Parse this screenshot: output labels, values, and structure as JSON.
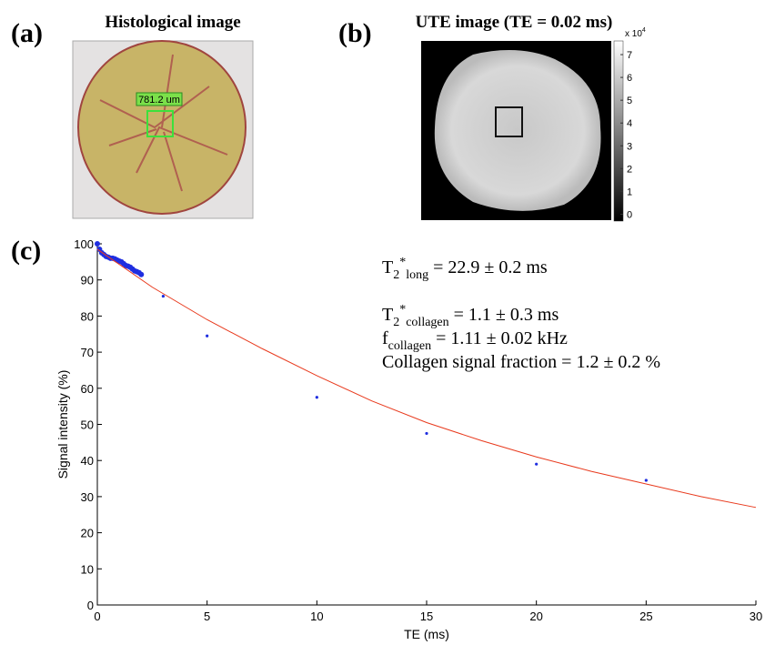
{
  "panels": {
    "a": {
      "label": "(a)",
      "title": "Histological image",
      "scale_label": "781.2 um"
    },
    "b": {
      "label": "(b)",
      "title": "UTE image (TE = 0.02 ms)",
      "colorbar": {
        "multiplier": "x 10",
        "exponent": "4",
        "lim": [
          -0.3,
          7.6
        ],
        "ticks": [
          0,
          1,
          2,
          3,
          4,
          5,
          6,
          7
        ]
      }
    },
    "c": {
      "label": "(c)"
    }
  },
  "chart_data": {
    "type": "scatter",
    "xlabel": "TE (ms)",
    "ylabel": "Signal intensity (%)",
    "xlim": [
      0,
      30
    ],
    "ylim": [
      0,
      100
    ],
    "xticks": [
      0,
      5,
      10,
      15,
      20,
      25,
      30
    ],
    "yticks": [
      0,
      10,
      20,
      30,
      40,
      50,
      60,
      70,
      80,
      90,
      100
    ],
    "series": [
      {
        "type": "scatter",
        "color": "#1f2ee0",
        "x": [
          0,
          0.1,
          0.2,
          0.3,
          0.4,
          0.5,
          0.6,
          0.7,
          0.8,
          0.9,
          1,
          1.1,
          1.2,
          1.3,
          1.4,
          1.5,
          1.6,
          1.7,
          1.8,
          1.9,
          2,
          3,
          5,
          10,
          15,
          20,
          25
        ],
        "values": [
          100,
          98.5,
          97.5,
          97,
          96.5,
          96.3,
          96,
          96,
          95.8,
          95.5,
          95.2,
          95,
          94.5,
          94,
          93.8,
          93.5,
          93,
          92.5,
          92.3,
          92,
          91.5,
          85.5,
          74.5,
          57.5,
          47.5,
          39,
          34.5
        ]
      },
      {
        "type": "line",
        "color": "#e8391c",
        "x": [
          0,
          2.5,
          5,
          7.5,
          10,
          12.5,
          15,
          17.5,
          20,
          22.5,
          25,
          27.5,
          30
        ],
        "values": [
          98.5,
          88,
          79,
          71,
          63.5,
          56.5,
          50.5,
          45.5,
          41,
          37,
          33.5,
          30,
          27
        ]
      }
    ],
    "annotations": [
      [
        {
          "t": "T"
        },
        {
          "sub": "2"
        },
        {
          "sup": "*"
        },
        {
          "sub": "long"
        },
        {
          "t": " = 22.9 ± 0.2 ms"
        }
      ],
      [
        {
          "t": "T"
        },
        {
          "sub": "2"
        },
        {
          "sup": "*"
        },
        {
          "sub": "collagen"
        },
        {
          "t": " = 1.1 ± 0.3 ms"
        }
      ],
      [
        {
          "t": "f"
        },
        {
          "sub": "collagen"
        },
        {
          "t": " = 1.11 ± 0.02 kHz"
        }
      ],
      [
        {
          "t": "Collagen signal fraction  = 1.2 ± 0.2 %"
        }
      ]
    ]
  }
}
